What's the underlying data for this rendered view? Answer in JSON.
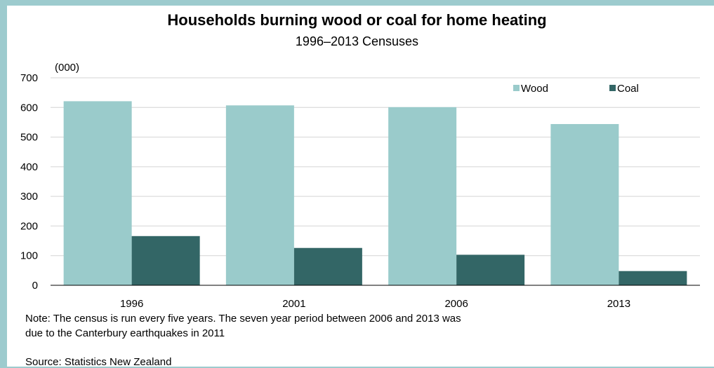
{
  "chart_data": {
    "type": "bar",
    "title": "Households burning wood or coal for home heating",
    "subtitle": "1996–2013 Censuses",
    "y_unit": "(000)",
    "categories": [
      "1996",
      "2001",
      "2006",
      "2013"
    ],
    "series": [
      {
        "name": "Wood",
        "color": "#9acbcb",
        "values": [
          621,
          607,
          601,
          544
        ]
      },
      {
        "name": "Coal",
        "color": "#336666",
        "values": [
          166,
          126,
          103,
          48
        ]
      }
    ],
    "ylim": [
      0,
      700
    ],
    "yticks": [
      0,
      100,
      200,
      300,
      400,
      500,
      600,
      700
    ],
    "grid": true,
    "legend_position": "top-right"
  },
  "note": "Note: The census is run every five years. The seven year period between 2006 and 2013 was due to the Canterbury earthquakes in 2011",
  "source": "Source: Statistics New Zealand",
  "colors": {
    "frame": "#9dcbce",
    "background": "#ffffff"
  }
}
